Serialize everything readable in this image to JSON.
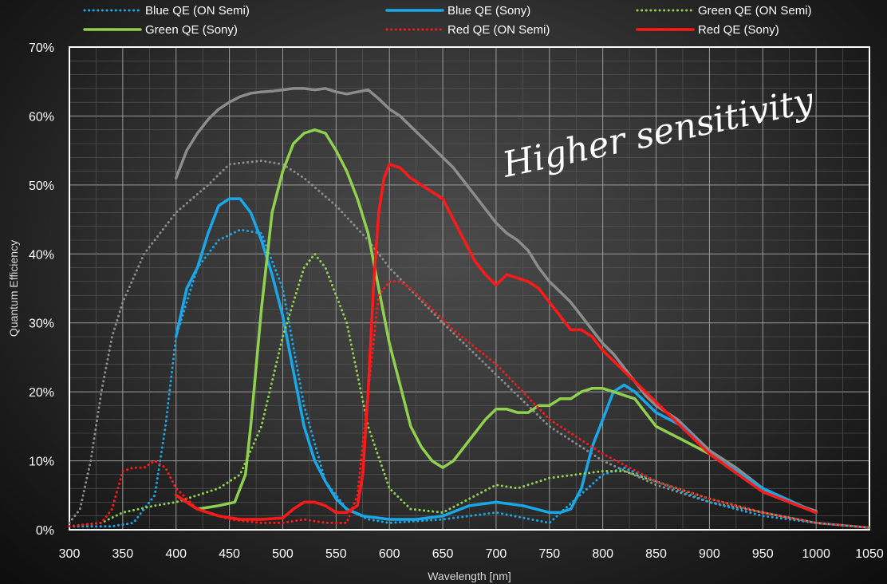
{
  "chart_data": {
    "type": "line",
    "title": "",
    "xlabel": "Wavelength [nm]",
    "ylabel": "Quantum Efficiency",
    "xlim": [
      300,
      1050
    ],
    "ylim": [
      0,
      70
    ],
    "x_ticks": [
      "300",
      "350",
      "400",
      "450",
      "500",
      "550",
      "600",
      "650",
      "700",
      "750",
      "800",
      "850",
      "900",
      "950",
      "1000",
      "1050"
    ],
    "y_ticks": [
      "0%",
      "10%",
      "20%",
      "30%",
      "40%",
      "50%",
      "60%",
      "70%"
    ],
    "grid": true,
    "legend_position": "top",
    "annotation": "Higher sensitivity",
    "colors": {
      "blue": "#1aa7e8",
      "green": "#8fd14f",
      "red": "#ff1a1a",
      "gray": "#8c8c8c"
    },
    "series": [
      {
        "name": "Blue QE (ON Semi)",
        "color": "#1aa7e8",
        "style": "dotted",
        "x": [
          300,
          340,
          360,
          380,
          390,
          400,
          420,
          440,
          460,
          480,
          500,
          520,
          540,
          560,
          580,
          600,
          650,
          700,
          750,
          800,
          820,
          850,
          900,
          950,
          1000,
          1050
        ],
        "y": [
          0.5,
          0.5,
          1,
          5,
          15,
          28,
          38,
          42,
          43.5,
          43,
          35,
          18,
          7,
          3,
          1.5,
          1,
          1.5,
          2.5,
          1,
          8,
          9,
          7,
          4,
          2,
          1,
          0.3
        ]
      },
      {
        "name": "Blue QE (Sony)",
        "color": "#1aa7e8",
        "style": "solid",
        "x": [
          400,
          410,
          420,
          430,
          440,
          450,
          460,
          470,
          480,
          490,
          500,
          510,
          520,
          530,
          540,
          550,
          560,
          575,
          600,
          625,
          650,
          675,
          700,
          725,
          750,
          760,
          770,
          780,
          790,
          800,
          810,
          820,
          830,
          850,
          875,
          900,
          950,
          1000
        ],
        "y": [
          28,
          35,
          38,
          43,
          47,
          48,
          48,
          46,
          42,
          37,
          31,
          23,
          15,
          10,
          7,
          4.5,
          3,
          2,
          1.5,
          1.5,
          2,
          3.5,
          4,
          3.5,
          2.5,
          2.5,
          3,
          6,
          12,
          16,
          20,
          21,
          20,
          17,
          15,
          11,
          6,
          2.5
        ]
      },
      {
        "name": "Green QE (ON Semi)",
        "color": "#8fd14f",
        "style": "dotted",
        "x": [
          300,
          330,
          350,
          380,
          400,
          420,
          440,
          460,
          480,
          500,
          520,
          530,
          540,
          560,
          580,
          600,
          620,
          650,
          700,
          720,
          750,
          800,
          820,
          850,
          900,
          950,
          1000,
          1050
        ],
        "y": [
          0.5,
          1,
          2.5,
          3.5,
          4,
          5,
          6,
          8,
          15,
          28,
          38,
          40,
          38,
          30,
          15,
          6,
          3,
          2.5,
          6.5,
          6,
          7.5,
          8.5,
          8.5,
          7,
          4.5,
          2.5,
          1,
          0.3
        ]
      },
      {
        "name": "Green QE (Sony)",
        "color": "#8fd14f",
        "style": "solid",
        "x": [
          400,
          420,
          440,
          455,
          465,
          470,
          480,
          490,
          500,
          510,
          520,
          530,
          540,
          550,
          560,
          570,
          580,
          590,
          600,
          610,
          620,
          630,
          640,
          650,
          660,
          670,
          680,
          690,
          700,
          710,
          720,
          730,
          740,
          750,
          760,
          770,
          780,
          790,
          800,
          810,
          820,
          830,
          850,
          875,
          900,
          950,
          1000
        ],
        "y": [
          5,
          3,
          3.5,
          4,
          8,
          15,
          32,
          46,
          52,
          56,
          57.5,
          58,
          57.5,
          55,
          52,
          48,
          43,
          35,
          27,
          21,
          15,
          12,
          10,
          9,
          10,
          12,
          14,
          16,
          17.5,
          17.5,
          17,
          17,
          18,
          18,
          19,
          19,
          20,
          20.5,
          20.5,
          20,
          19.5,
          19,
          15,
          13,
          11,
          5.5,
          2.5
        ]
      },
      {
        "name": "Red QE (ON Semi)",
        "color": "#ff1a1a",
        "style": "dotted",
        "x": [
          300,
          330,
          340,
          350,
          360,
          370,
          380,
          390,
          400,
          420,
          450,
          480,
          500,
          520,
          540,
          560,
          570,
          580,
          590,
          600,
          610,
          620,
          640,
          660,
          700,
          750,
          800,
          850,
          900,
          950,
          1000,
          1050
        ],
        "y": [
          0.5,
          1,
          3,
          8.5,
          9,
          9,
          10,
          9,
          6,
          3,
          1.5,
          1,
          1,
          1.5,
          1,
          1,
          5,
          20,
          34,
          36,
          36,
          35,
          32,
          29,
          24,
          16,
          11,
          7,
          4.5,
          2.5,
          1,
          0.3
        ]
      },
      {
        "name": "Red QE (Sony)",
        "color": "#ff1a1a",
        "style": "solid",
        "x": [
          400,
          420,
          440,
          460,
          480,
          500,
          510,
          520,
          530,
          540,
          550,
          560,
          570,
          575,
          580,
          585,
          590,
          595,
          600,
          610,
          620,
          630,
          640,
          650,
          660,
          670,
          680,
          690,
          700,
          710,
          720,
          730,
          740,
          750,
          760,
          770,
          780,
          790,
          800,
          820,
          840,
          860,
          900,
          950,
          1000
        ],
        "y": [
          5,
          3,
          2,
          1.5,
          1.5,
          1.7,
          3,
          4,
          4,
          3.5,
          2.5,
          2.5,
          3.5,
          8,
          20,
          35,
          46,
          51,
          53,
          52.5,
          51,
          50,
          49,
          48,
          45,
          42,
          39,
          37,
          35.5,
          37,
          36.5,
          36,
          35,
          33,
          31,
          29,
          29,
          28,
          26,
          23,
          20,
          17,
          11,
          5.5,
          2.5
        ]
      },
      {
        "name": "",
        "color": "#8c8c8c",
        "style": "dotted",
        "x": [
          300,
          310,
          320,
          330,
          340,
          350,
          370,
          400,
          430,
          450,
          480,
          500,
          520,
          550,
          580,
          600,
          650,
          700,
          750,
          800,
          850,
          900,
          950,
          1000,
          1050
        ],
        "y": [
          1,
          3,
          10,
          20,
          28,
          33,
          40,
          46,
          50,
          53,
          53.5,
          53,
          51,
          47,
          42,
          38,
          30,
          22.5,
          15,
          10,
          6.5,
          4,
          2.5,
          1,
          0.3
        ]
      },
      {
        "name": "",
        "color": "#8c8c8c",
        "style": "solid",
        "x": [
          400,
          410,
          420,
          430,
          440,
          450,
          460,
          470,
          480,
          490,
          500,
          510,
          520,
          530,
          540,
          550,
          560,
          570,
          580,
          590,
          600,
          610,
          620,
          630,
          640,
          650,
          660,
          670,
          680,
          690,
          700,
          710,
          720,
          730,
          740,
          750,
          760,
          770,
          780,
          790,
          800,
          810,
          820,
          830,
          840,
          850,
          860,
          870,
          880,
          890,
          900,
          925,
          950,
          975,
          1000
        ],
        "y": [
          51,
          55,
          57.5,
          59.5,
          61,
          62,
          62.8,
          63.3,
          63.5,
          63.6,
          63.8,
          64,
          64,
          63.8,
          64,
          63.5,
          63.2,
          63.5,
          63.8,
          62.5,
          61,
          60,
          58.5,
          57,
          55.5,
          54,
          52.5,
          50.5,
          48.5,
          46.5,
          44.5,
          43,
          42,
          40.5,
          38,
          36,
          34.5,
          33,
          31,
          29,
          27,
          25.5,
          23.5,
          21.5,
          19.5,
          18,
          17,
          16,
          14.5,
          13,
          11.5,
          9,
          6,
          4,
          2.7
        ]
      }
    ]
  }
}
